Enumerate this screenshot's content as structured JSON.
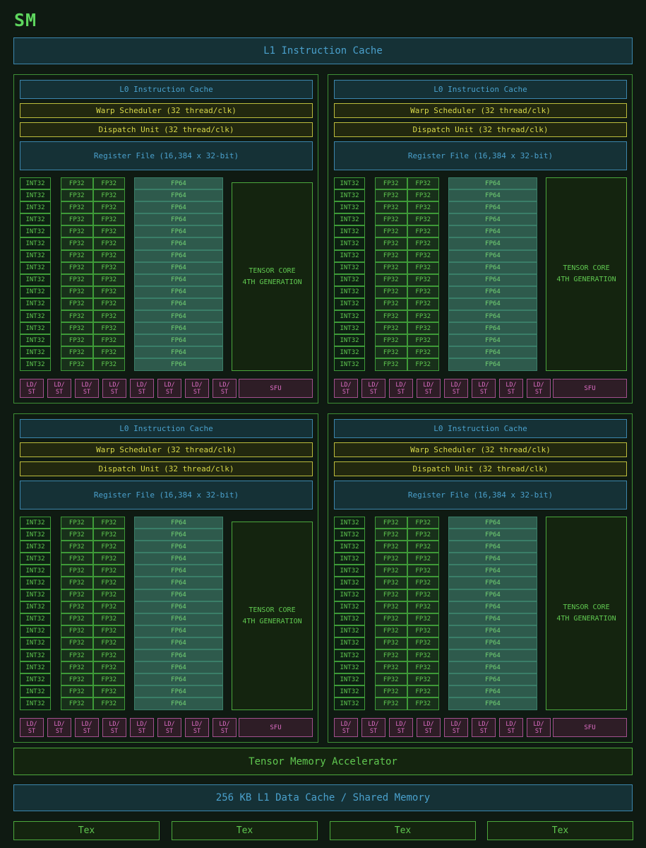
{
  "title": "SM",
  "l1_instruction_cache": "L1 Instruction Cache",
  "quadrant": {
    "l0": "L0 Instruction Cache",
    "warp": "Warp Scheduler (32 thread/clk)",
    "dispatch": "Dispatch Unit (32 thread/clk)",
    "register_file": "Register File (16,384 x 32-bit)",
    "int32": "INT32",
    "fp32": "FP32",
    "fp64": "FP64",
    "tensor_line1": "TENSOR CORE",
    "tensor_line2": "4TH GENERATION",
    "ldst_line1": "LD/",
    "ldst_line2": "ST",
    "sfu": "SFU"
  },
  "tensor_memory_accelerator": "Tensor Memory Accelerator",
  "l1_data_cache": "256 KB L1 Data Cache / Shared Memory",
  "tex": [
    "Tex",
    "Tex",
    "Tex",
    "Tex"
  ],
  "colors": {
    "background": "#0f1a12",
    "blue": "#4aa0cc",
    "yellow": "#d8d84a",
    "green": "#60c850",
    "pink": "#dc6cc4"
  }
}
